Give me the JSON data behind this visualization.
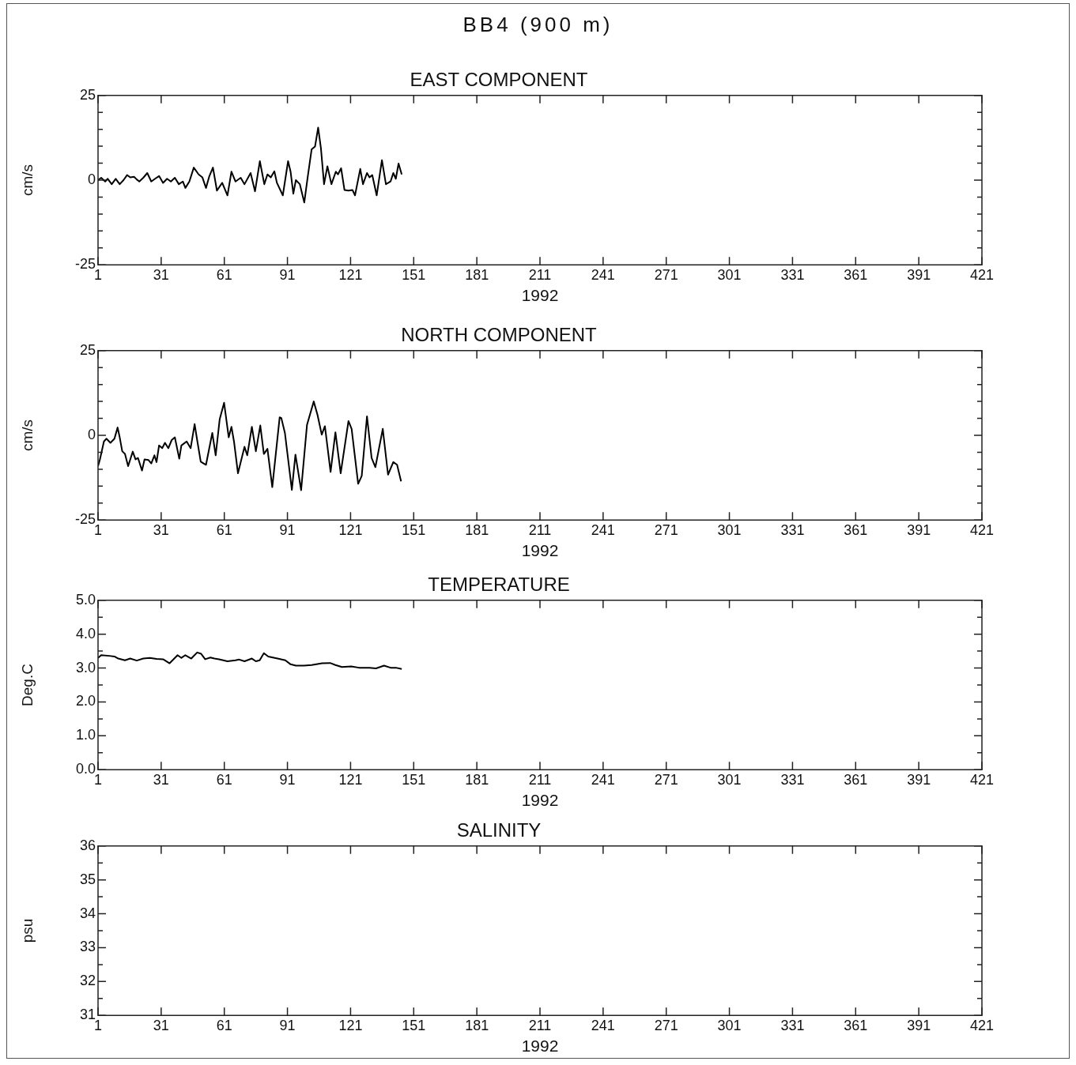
{
  "chart_data": [
    {
      "type": "other",
      "title": "BB4 (900 m)"
    },
    {
      "type": "line",
      "title": "EAST COMPONENT",
      "xlabel": "1992",
      "ylabel": "cm/s",
      "xlim": [
        1,
        421
      ],
      "xticks": [
        1,
        31,
        61,
        91,
        121,
        151,
        181,
        211,
        241,
        271,
        301,
        331,
        361,
        391,
        421
      ],
      "ylim": [
        -25,
        25
      ],
      "yticks": [
        -25,
        {
          "value": -20,
          "label": null
        },
        {
          "value": -15,
          "label": null
        },
        {
          "value": -10,
          "label": null
        },
        {
          "value": -5,
          "label": null
        },
        0,
        {
          "value": 5,
          "label": null
        },
        {
          "value": 10,
          "label": null
        },
        {
          "value": 15,
          "label": null
        },
        {
          "value": 20,
          "label": null
        },
        25
      ],
      "series": [
        {
          "color": "#000000",
          "x": [
            1,
            2.5,
            4.4,
            5.6,
            7.5,
            9.4,
            11.3,
            13.1,
            14.8,
            16.3,
            18.1,
            19.4,
            20.6,
            22.5,
            24.4,
            26.3,
            28.1,
            30,
            31.9,
            33.8,
            35.6,
            37.5,
            39.4,
            41.3,
            42.5,
            44.4,
            46.5,
            48.8,
            50.6,
            52.3,
            53.8,
            55.6,
            57.5,
            60,
            62.5,
            64.4,
            66.3,
            68.8,
            70.6,
            73.5,
            75.6,
            77.9,
            80,
            81.5,
            83.1,
            84.8,
            86,
            88.8,
            91.3,
            92.5,
            93.8,
            95,
            96.9,
            99,
            100.6,
            102.5,
            104.1,
            105.6,
            106.9,
            108.4,
            110,
            111.9,
            114,
            115,
            116.5,
            118.1,
            120,
            121.9,
            123.1,
            125.6,
            126.9,
            128.8,
            130,
            131.3,
            133.4,
            135.9,
            137.8,
            140,
            141.3,
            142.5,
            143.8,
            145.3
          ],
          "values": [
            0,
            0.7,
            -0.4,
            0.4,
            -1.2,
            0.4,
            -1.2,
            0,
            1.5,
            0.8,
            1,
            0.2,
            -0.4,
            0.7,
            2.1,
            -0.4,
            0.4,
            1.2,
            -0.8,
            0.4,
            -0.4,
            0.7,
            -1.2,
            -0.4,
            -2.3,
            -0.4,
            3.7,
            1.7,
            0.8,
            -2.3,
            1,
            3.7,
            -3.1,
            -0.8,
            -4.5,
            2.5,
            -0.4,
            0.7,
            -1.2,
            2.1,
            -3.3,
            5.6,
            -1.2,
            1.7,
            0.8,
            2.6,
            -0.8,
            -4.5,
            5.6,
            2.5,
            -4,
            0,
            -1.2,
            -6.6,
            0.8,
            9.1,
            9.9,
            15.5,
            9.5,
            -1.2,
            4.1,
            -1.2,
            2.5,
            1.7,
            3.5,
            -2.9,
            -3.1,
            -2.9,
            -4.5,
            3.3,
            -1.2,
            2.1,
            0.8,
            1.5,
            -4.5,
            5.9,
            -1.2,
            -0.4,
            2.1,
            0.4,
            4.9,
            1.7
          ]
        }
      ]
    },
    {
      "type": "line",
      "title": "NORTH COMPONENT",
      "xlabel": "1992",
      "ylabel": "cm/s",
      "xlim": [
        1,
        421
      ],
      "xticks": [
        1,
        31,
        61,
        91,
        121,
        151,
        181,
        211,
        241,
        271,
        301,
        331,
        361,
        391,
        421
      ],
      "ylim": [
        -25,
        25
      ],
      "yticks": [
        -25,
        {
          "value": -20,
          "label": null
        },
        {
          "value": -15,
          "label": null
        },
        {
          "value": -10,
          "label": null
        },
        {
          "value": -5,
          "label": null
        },
        0,
        {
          "value": 5,
          "label": null
        },
        {
          "value": 10,
          "label": null
        },
        {
          "value": 15,
          "label": null
        },
        {
          "value": 20,
          "label": null
        },
        25
      ],
      "series": [
        {
          "color": "#000000",
          "x": [
            1,
            1.9,
            3.8,
            5,
            6.9,
            8.8,
            10.3,
            11.3,
            12.5,
            13.8,
            15.3,
            17.5,
            18.8,
            20,
            21.9,
            23.1,
            25,
            26.3,
            27.8,
            28.8,
            30,
            31.5,
            32.8,
            34.4,
            36,
            37.5,
            39.6,
            40.6,
            43.1,
            45,
            46.9,
            48.1,
            49.8,
            52.3,
            55.3,
            56.9,
            58.8,
            60.9,
            63.1,
            64.4,
            65.6,
            67.5,
            70.6,
            71.9,
            74.1,
            76,
            78.1,
            79.8,
            81.5,
            83.8,
            87.3,
            88.1,
            89.8,
            93.1,
            94.8,
            97.5,
            100.3,
            103.5,
            105.3,
            107.3,
            108.8,
            111.5,
            113.8,
            116.3,
            120,
            121.5,
            124.6,
            126.3,
            128.8,
            131,
            132.8,
            136.3,
            138.8,
            141.3,
            143.1,
            145
          ],
          "values": [
            -9.1,
            -7.1,
            -1.8,
            -1,
            -2.2,
            -1,
            2.3,
            -0.6,
            -4.7,
            -5.5,
            -9.1,
            -4.8,
            -7.1,
            -6.7,
            -10.4,
            -7.1,
            -7.3,
            -8.3,
            -5.9,
            -7.9,
            -3,
            -3.8,
            -2.2,
            -3.8,
            -1.4,
            -0.6,
            -6.9,
            -3,
            -1.8,
            -3.8,
            3.3,
            -1.4,
            -7.8,
            -8.7,
            0.7,
            -5.9,
            4.7,
            9.6,
            -0.6,
            2.5,
            -1.8,
            -11.2,
            -3.4,
            -5.9,
            2.5,
            -4.7,
            2.9,
            -5.5,
            -4,
            -15.3,
            5.3,
            5.1,
            0.7,
            -16.1,
            -5.7,
            -16.2,
            3.1,
            10,
            6,
            0.2,
            2.7,
            -10.8,
            0.9,
            -11.2,
            4.2,
            1.9,
            -14.3,
            -12,
            5.6,
            -6.7,
            -9.4,
            1.9,
            -11.6,
            -7.9,
            -8.7,
            -13.6
          ]
        }
      ]
    },
    {
      "type": "line",
      "title": "TEMPERATURE",
      "xlabel": "1992",
      "ylabel": "Deg.C",
      "xlim": [
        1,
        421
      ],
      "xticks": [
        1,
        31,
        61,
        91,
        121,
        151,
        181,
        211,
        241,
        271,
        301,
        331,
        361,
        391,
        421
      ],
      "ylim": [
        0,
        5
      ],
      "yticks": [
        {
          "value": 0,
          "label": "0.0"
        },
        {
          "value": 0.5,
          "label": null
        },
        {
          "value": 1,
          "label": "1.0"
        },
        {
          "value": 1.5,
          "label": null
        },
        {
          "value": 2,
          "label": "2.0"
        },
        {
          "value": 2.5,
          "label": null
        },
        {
          "value": 3,
          "label": "3.0"
        },
        {
          "value": 3.5,
          "label": null
        },
        {
          "value": 4,
          "label": "4.0"
        },
        {
          "value": 4.5,
          "label": null
        },
        {
          "value": 5,
          "label": "5.0"
        }
      ],
      "series": [
        {
          "color": "#000000",
          "x": [
            1,
            2.5,
            6.3,
            8.8,
            10.6,
            13.8,
            16.3,
            19.4,
            22.5,
            25.6,
            28.8,
            31.9,
            35,
            38.8,
            40.6,
            42.5,
            45.3,
            48.1,
            50,
            51.9,
            54.4,
            56.3,
            58.5,
            62.5,
            66.3,
            68.1,
            70.6,
            74.1,
            76,
            77.8,
            79.8,
            81.9,
            86.3,
            90,
            92.5,
            95,
            98.8,
            102.5,
            107.5,
            111.3,
            113.8,
            116.9,
            121.3,
            125,
            130,
            133.1,
            136.9,
            140,
            142.5,
            145.3
          ],
          "values": [
            3.3,
            3.38,
            3.36,
            3.34,
            3.28,
            3.23,
            3.28,
            3.22,
            3.28,
            3.3,
            3.27,
            3.26,
            3.14,
            3.38,
            3.3,
            3.38,
            3.28,
            3.46,
            3.42,
            3.26,
            3.31,
            3.28,
            3.26,
            3.2,
            3.23,
            3.25,
            3.2,
            3.28,
            3.2,
            3.23,
            3.44,
            3.34,
            3.28,
            3.23,
            3.11,
            3.07,
            3.07,
            3.09,
            3.14,
            3.15,
            3.09,
            3.03,
            3.05,
            3.01,
            3.01,
            2.99,
            3.07,
            3.01,
            3.01,
            2.97
          ]
        }
      ]
    },
    {
      "type": "line",
      "title": "SALINITY",
      "xlabel": "1992",
      "ylabel": "psu",
      "xlim": [
        1,
        421
      ],
      "xticks": [
        1,
        31,
        61,
        91,
        121,
        151,
        181,
        211,
        241,
        271,
        301,
        331,
        361,
        391,
        421
      ],
      "ylim": [
        31,
        36
      ],
      "yticks": [
        31,
        {
          "value": 31.5,
          "label": null
        },
        32,
        {
          "value": 32.5,
          "label": null
        },
        33,
        {
          "value": 33.5,
          "label": null
        },
        34,
        {
          "value": 34.5,
          "label": null
        },
        35,
        {
          "value": 35.5,
          "label": null
        },
        36
      ]
    }
  ]
}
